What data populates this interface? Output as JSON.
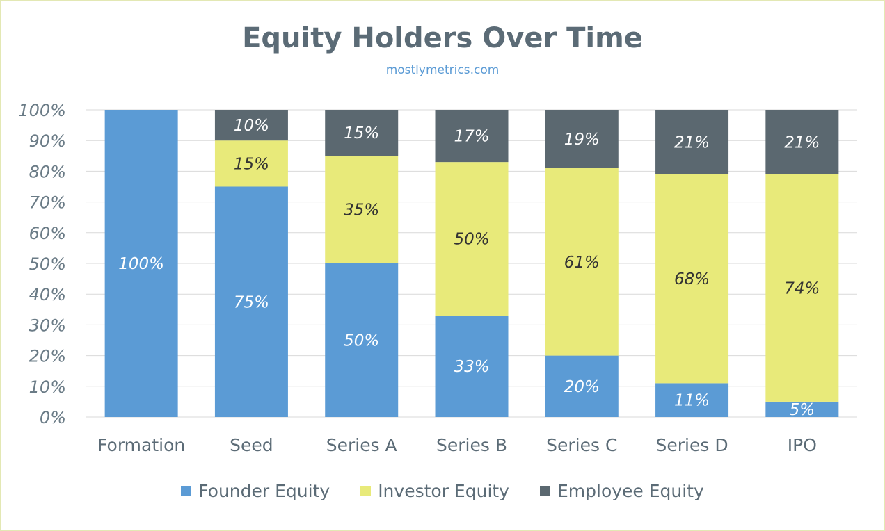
{
  "chart_data": {
    "type": "bar",
    "stacked": true,
    "title": "Equity Holders Over Time",
    "subtitle": "mostlymetrics.com",
    "categories": [
      "Formation",
      "Seed",
      "Series A",
      "Series B",
      "Series C",
      "Series D",
      "IPO"
    ],
    "series": [
      {
        "name": "Founder Equity",
        "color": "#5b9bd5",
        "label_color": "#ffffff",
        "values": [
          100,
          75,
          50,
          33,
          20,
          11,
          5
        ],
        "labels": [
          "100%",
          "75%",
          "50%",
          "33%",
          "20%",
          "11%",
          "5%"
        ]
      },
      {
        "name": "Investor Equity",
        "color": "#e8ea7a",
        "label_color": "#333333",
        "values": [
          0,
          15,
          35,
          50,
          61,
          68,
          74
        ],
        "labels": [
          "",
          "15%",
          "35%",
          "50%",
          "61%",
          "68%",
          "74%"
        ]
      },
      {
        "name": "Employee Equity",
        "color": "#5b6870",
        "label_color": "#ffffff",
        "values": [
          0,
          10,
          15,
          17,
          19,
          21,
          21
        ],
        "labels": [
          "",
          "10%",
          "15%",
          "17%",
          "19%",
          "21%",
          "21%"
        ]
      }
    ],
    "ylim": [
      0,
      100
    ],
    "yticks": [
      "0%",
      "10%",
      "20%",
      "30%",
      "40%",
      "50%",
      "60%",
      "70%",
      "80%",
      "90%",
      "100%"
    ],
    "grid": true,
    "legend": "bottom"
  }
}
